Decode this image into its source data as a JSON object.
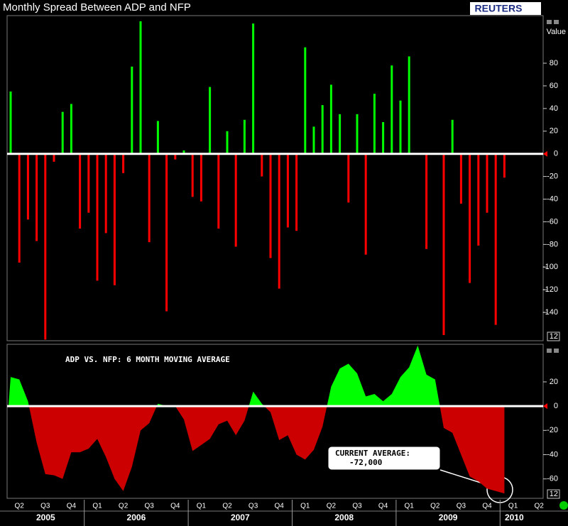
{
  "logo": "REUTERS",
  "x_axis": {
    "quarters": [
      "Q2",
      "Q3",
      "Q4",
      "Q1",
      "Q2",
      "Q3",
      "Q4",
      "Q1",
      "Q2",
      "Q3",
      "Q4",
      "Q1",
      "Q2",
      "Q3",
      "Q4",
      "Q1",
      "Q2",
      "Q3",
      "Q4",
      "Q1",
      "Q2"
    ],
    "years": [
      "2005",
      "2006",
      "2007",
      "2008",
      "2009",
      "2010"
    ]
  },
  "chart_data": [
    {
      "type": "bar",
      "title": "Monthly Spread Between ADP and NFP",
      "y_label": "Value",
      "marker_label": "12",
      "positive_color": "#00ff00",
      "negative_color": "#ff0000",
      "values": [
        55,
        -96,
        -58,
        -77,
        -164,
        -7,
        37,
        44,
        -66,
        -52,
        -112,
        -70,
        -116,
        -17,
        77,
        117,
        -78,
        29,
        -139,
        -5,
        3,
        -38,
        -42,
        59,
        -66,
        20,
        -82,
        30,
        115,
        -20,
        -92,
        -119,
        -65,
        -68,
        94,
        24,
        43,
        61,
        35,
        -43,
        35,
        -89,
        53,
        28,
        78,
        47,
        86,
        null,
        -84,
        null,
        -160,
        30,
        -44,
        -114,
        -81,
        -52,
        -151,
        -21
      ],
      "ylim": [
        -165,
        122
      ],
      "yticks": [
        80,
        60,
        40,
        20,
        0,
        -20,
        -40,
        -60,
        -80,
        -100,
        -120,
        -140
      ]
    },
    {
      "type": "area",
      "annotation": "ADP VS. NFP: 6 MONTH MOVING AVERAGE",
      "callout_title": "CURRENT AVERAGE:",
      "callout_value": "-72,000",
      "marker_label": "12",
      "positive_color": "#00ff00",
      "negative_color": "#cc0000",
      "values": [
        24,
        22,
        4,
        -30,
        -56,
        -57,
        -60,
        -38,
        -38,
        -35,
        -27,
        -42,
        -60,
        -70,
        -50,
        -20,
        -14,
        2,
        0,
        0,
        -11,
        -37,
        -32,
        -27,
        -15,
        -12,
        -24,
        -12,
        12,
        2,
        -5,
        -28,
        -24,
        -40,
        -44,
        -36,
        -17,
        16,
        31,
        35,
        27,
        8,
        10,
        4,
        10,
        24,
        32,
        50,
        26,
        22,
        -18,
        -22,
        -40,
        -58,
        -62,
        -68,
        -70,
        -72
      ],
      "ylim": [
        -76,
        51
      ],
      "yticks": [
        20,
        0,
        -20,
        -40,
        -60
      ]
    }
  ]
}
